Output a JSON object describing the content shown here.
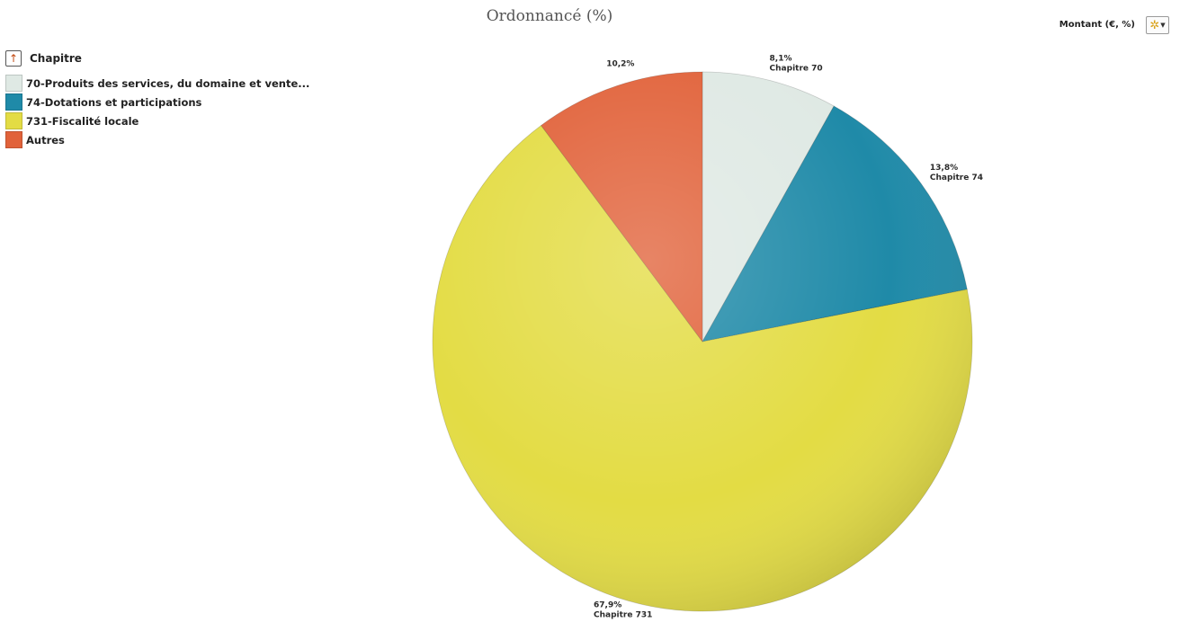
{
  "header": {
    "title": "Ordonnancé (%)",
    "measure_label": "Montant (€, %)",
    "settings_icon": "gear-icon"
  },
  "legend": {
    "title": "Chapitre",
    "up_icon": "arrow-up-icon",
    "items": [
      {
        "label": "70-Produits des services, du domaine et vente...",
        "color": "#dfe9e4"
      },
      {
        "label": "74-Dotations et participations",
        "color": "#1f8aa8"
      },
      {
        "label": "731-Fiscalité locale",
        "color": "#e3dc44"
      },
      {
        "label": "Autres",
        "color": "#e1623a"
      }
    ]
  },
  "chart_data": {
    "type": "pie",
    "title": "Ordonnancé (%)",
    "slices": [
      {
        "name": "70-Produits des services, du domaine et vente...",
        "value": 8.1,
        "value_label": "8,1%",
        "label": "Chapitre 70",
        "color": "#dfe9e4"
      },
      {
        "name": "74-Dotations et participations",
        "value": 13.8,
        "value_label": "13,8%",
        "label": "Chapitre 74",
        "color": "#1f8aa8"
      },
      {
        "name": "731-Fiscalité locale",
        "value": 67.9,
        "value_label": "67,9%",
        "label": "Chapitre 731",
        "color": "#e3dc44"
      },
      {
        "name": "Autres",
        "value": 10.2,
        "value_label": "10,2%",
        "label": "",
        "color": "#e1623a"
      }
    ],
    "legend": "top-left"
  }
}
